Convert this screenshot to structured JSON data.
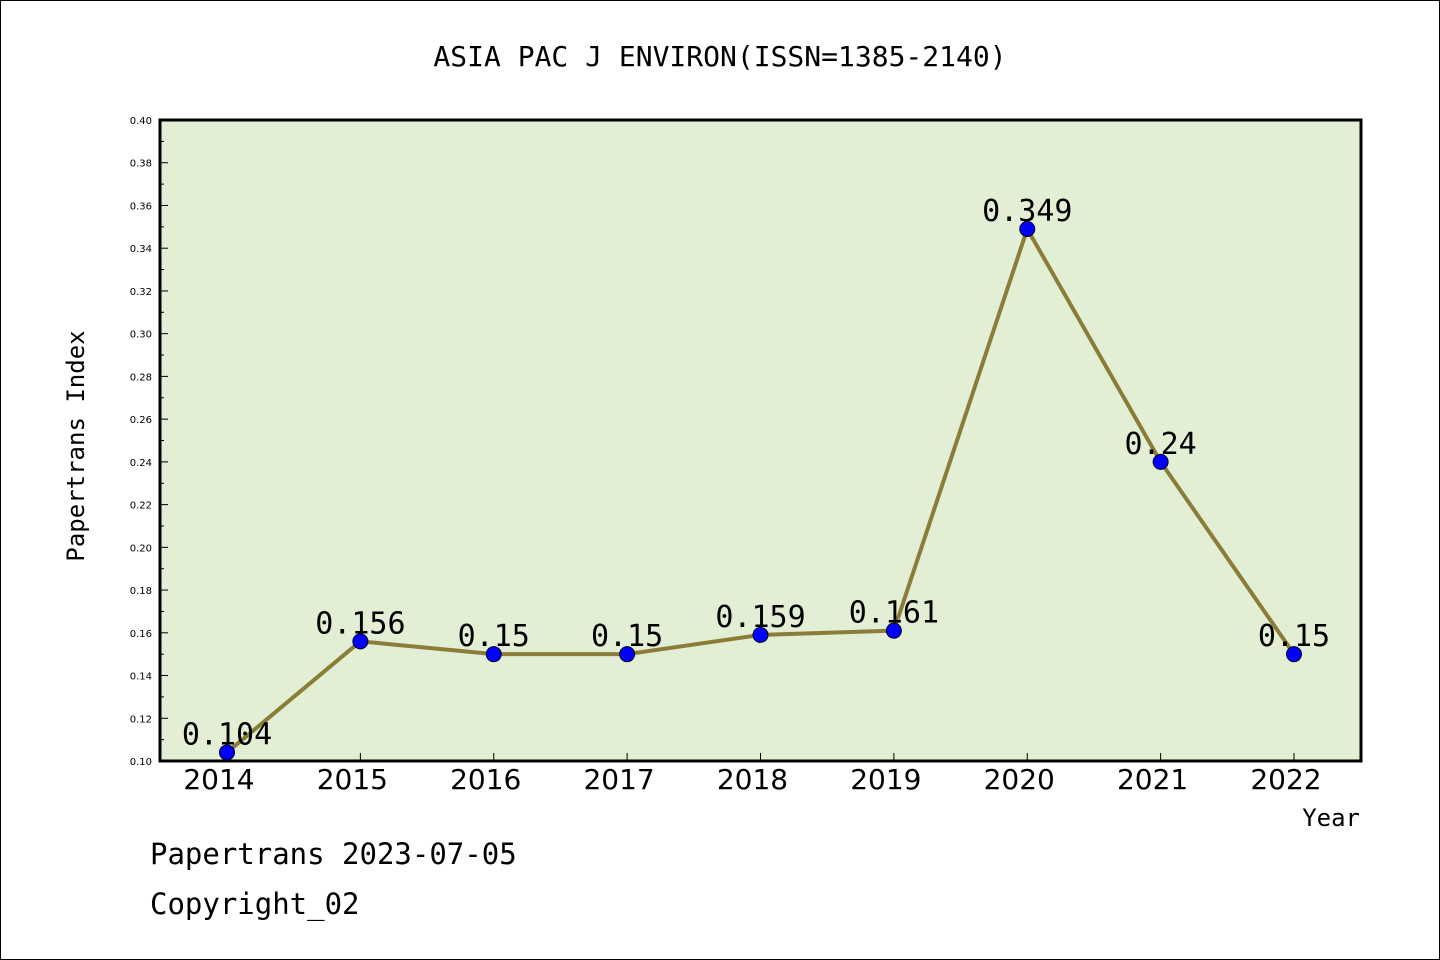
{
  "footer": {
    "line1": "Papertrans 2023-07-05",
    "line2": "Copyright_02"
  },
  "chart_data": {
    "type": "line",
    "title": "ASIA PAC J ENVIRON(ISSN=1385-2140)",
    "xlabel": "Year",
    "ylabel": "Papertrans Index",
    "categories": [
      "2014",
      "2015",
      "2016",
      "2017",
      "2018",
      "2019",
      "2020",
      "2021",
      "2022"
    ],
    "values": [
      0.104,
      0.156,
      0.15,
      0.15,
      0.159,
      0.161,
      0.349,
      0.24,
      0.15
    ],
    "data_labels": [
      "0.104",
      "0.156",
      "0.15",
      "0.15",
      "0.159",
      "0.161",
      "0.349",
      "0.24",
      "0.15"
    ],
    "ylim": [
      0.1,
      0.4
    ],
    "yticks": [
      "0.10",
      "0.12",
      "0.14",
      "0.16",
      "0.18",
      "0.20",
      "0.22",
      "0.24",
      "0.26",
      "0.28",
      "0.30",
      "0.32",
      "0.34",
      "0.36",
      "0.38",
      "0.40"
    ],
    "grid": false,
    "colors": {
      "plot_background": "#e2efd5",
      "line": "#8b7d38",
      "marker": "#0000ff"
    }
  }
}
